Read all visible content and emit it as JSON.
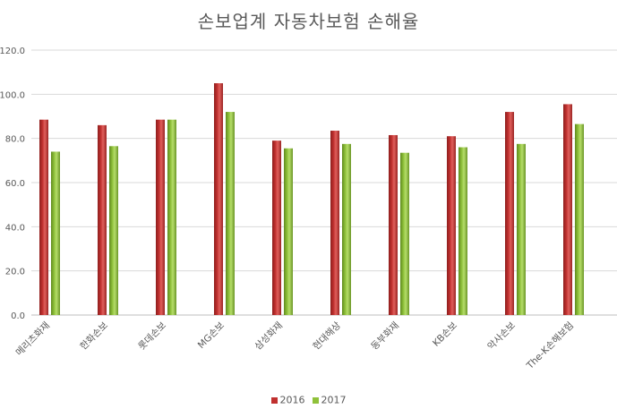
{
  "chart_data": {
    "type": "bar",
    "title": "손보업계 자동차보험 손해율",
    "xlabel": "",
    "ylabel": "",
    "ylim": [
      0,
      120
    ],
    "yticks": [
      "0.0",
      "20.0",
      "40.0",
      "60.0",
      "80.0",
      "100.0",
      "120.0"
    ],
    "grid": true,
    "legend_position": "bottom",
    "categories": [
      "메리츠화재",
      "한화손보",
      "롯데손보",
      "MG손보",
      "삼성화재",
      "현대해상",
      "동부화재",
      "KB손보",
      "악사손보",
      "The-K손해보험"
    ],
    "series": [
      {
        "name": "2016",
        "color": "#c0302f",
        "values": [
          88.5,
          86,
          88.5,
          105,
          79,
          83.5,
          81.5,
          81,
          92,
          95.5
        ]
      },
      {
        "name": "2017",
        "color": "#8fc13a",
        "values": [
          74,
          76.5,
          88.5,
          92,
          75.5,
          77.5,
          73.5,
          76,
          77.5,
          86.5
        ]
      }
    ]
  }
}
